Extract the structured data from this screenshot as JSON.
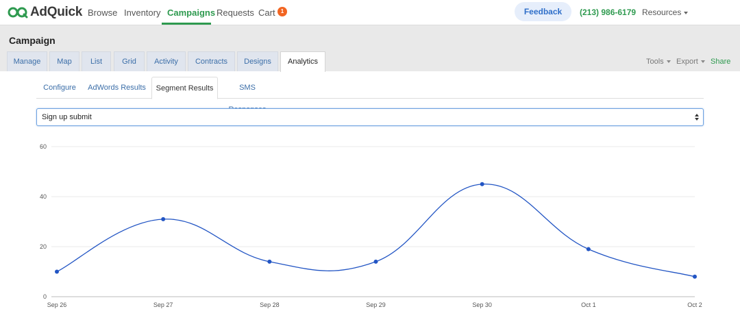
{
  "brand": {
    "name": "AdQuick",
    "accent": "#2e9a4f",
    "logo_icon": "adquick-logo-icon"
  },
  "nav": {
    "items": [
      {
        "label": "Browse",
        "active": false
      },
      {
        "label": "Inventory",
        "active": false
      },
      {
        "label": "Campaigns",
        "active": true
      },
      {
        "label": "Requests",
        "active": false
      },
      {
        "label": "Cart",
        "active": false
      }
    ],
    "cart_count": "1",
    "feedback_label": "Feedback",
    "phone": "(213) 986-6179",
    "resources_label": "Resources"
  },
  "campaign": {
    "title": "Campaign",
    "tabs": [
      {
        "label": "Manage",
        "active": false
      },
      {
        "label": "Map",
        "active": false
      },
      {
        "label": "List",
        "active": false
      },
      {
        "label": "Grid",
        "active": false
      },
      {
        "label": "Activity",
        "active": false
      },
      {
        "label": "Contracts",
        "active": false
      },
      {
        "label": "Designs",
        "active": false
      },
      {
        "label": "Analytics",
        "active": true
      }
    ],
    "tools_label": "Tools",
    "export_label": "Export",
    "share_label": "Share"
  },
  "analytics": {
    "subtabs": [
      {
        "label": "Configure",
        "active": false
      },
      {
        "label": "AdWords Results",
        "active": false
      },
      {
        "label": "Segment Results",
        "active": true
      },
      {
        "label": "SMS Responses",
        "active": false
      }
    ],
    "segment_select": {
      "value": "Sign up submit"
    }
  },
  "chart_data": {
    "type": "line",
    "categories": [
      "Sep 26",
      "Sep 27",
      "Sep 28",
      "Sep 29",
      "Sep 30",
      "Oct 1",
      "Oct 2"
    ],
    "series": [
      {
        "values": [
          10,
          31,
          14,
          14,
          45,
          19,
          8
        ],
        "color": "#2255c4"
      }
    ],
    "yticks": [
      0,
      20,
      40,
      60
    ],
    "ylim": [
      0,
      60
    ],
    "grid": true,
    "smooth": true
  }
}
